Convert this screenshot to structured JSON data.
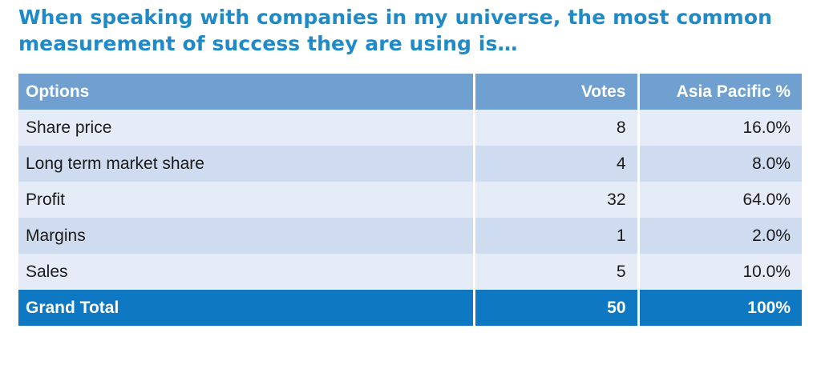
{
  "title": "When speaking with companies in my universe, the most common measurement of success they are using is…",
  "chart_data": {
    "type": "table",
    "columns": [
      "Options",
      "Votes",
      "Asia Pacific %"
    ],
    "rows": [
      [
        "Share price",
        "8",
        "16.0%"
      ],
      [
        "Long term market share",
        "4",
        "8.0%"
      ],
      [
        "Profit",
        "32",
        "64.0%"
      ],
      [
        "Margins",
        "1",
        "2.0%"
      ],
      [
        "Sales",
        "5",
        "10.0%"
      ]
    ],
    "total": [
      "Grand Total",
      "50",
      "100%"
    ]
  },
  "colors": {
    "title": "#1f8ac7",
    "header": "#6fa0d0",
    "row_light": "#e5ecf7",
    "row_dark": "#cfdcef",
    "total": "#0f78c2"
  }
}
